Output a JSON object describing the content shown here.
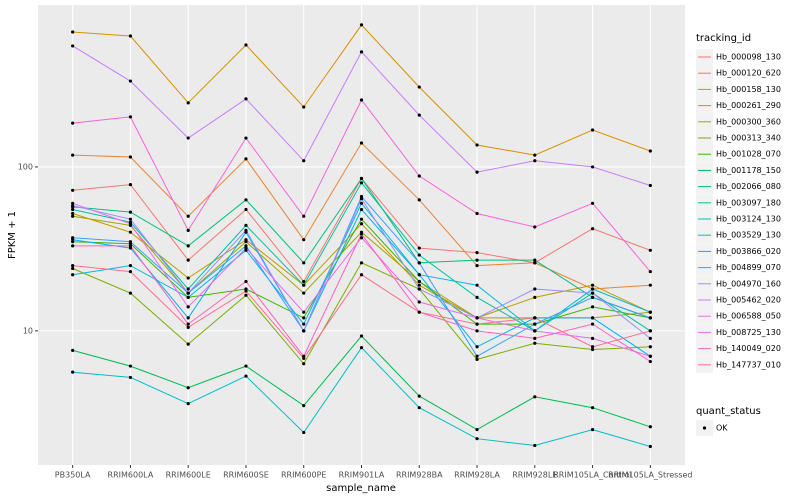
{
  "chart_data": {
    "type": "line",
    "x_label": "sample_name",
    "y_label": "FPKM + 1",
    "legend_title": "tracking_id",
    "legend2_title": "quant_status",
    "legend2_items": [
      "OK"
    ],
    "log_y": true,
    "grid": true,
    "legend_position": "right",
    "ylim": [
      1.52,
      972
    ],
    "yticks": [
      10,
      100
    ],
    "categories": [
      "PB350LA",
      "RRIM600LA",
      "RRIM600LE",
      "RRIM600SE",
      "RRIM600PE",
      "RRIM901LA",
      "RRIM928BA",
      "RRIM928LA",
      "RRIM928LE",
      "RRIM105LA_Control",
      "RRIM105LA_Stressed"
    ],
    "series": [
      {
        "name": "Hb_000098_130",
        "color": "#F8766D",
        "values": [
          72,
          78,
          27,
          55,
          20,
          85,
          32,
          30,
          26,
          42,
          31
        ]
      },
      {
        "name": "Hb_000120_620",
        "color": "#EA8331",
        "values": [
          118,
          115,
          50,
          112,
          36,
          140,
          63,
          25,
          26,
          18,
          19
        ]
      },
      {
        "name": "Hb_000158_130",
        "color": "#D89000",
        "values": [
          665,
          629,
          246,
          554,
          232,
          735,
          307,
          136,
          118,
          168,
          125
        ]
      },
      {
        "name": "Hb_000261_290",
        "color": "#C09B00",
        "values": [
          52,
          40,
          21,
          36,
          19,
          45,
          19,
          12,
          16,
          19,
          13
        ]
      },
      {
        "name": "Hb_000300_360",
        "color": "#A3A500",
        "values": [
          50,
          44,
          17,
          35,
          17,
          40,
          20,
          12,
          12,
          12,
          13
        ]
      },
      {
        "name": "Hb_000313_340",
        "color": "#7CAE00",
        "values": [
          24,
          17,
          8.3,
          16.5,
          6.3,
          26,
          18,
          6.7,
          8.4,
          7.7,
          8
        ]
      },
      {
        "name": "Hb_001028_070",
        "color": "#39B600",
        "values": [
          35,
          34,
          16,
          18,
          12,
          48,
          20,
          11,
          11,
          14,
          12
        ]
      },
      {
        "name": "Hb_001178_150",
        "color": "#00BB4E",
        "values": [
          7.6,
          6.1,
          4.5,
          6.1,
          3.5,
          9.3,
          4.0,
          2.5,
          3.96,
          3.4,
          2.6
        ]
      },
      {
        "name": "Hb_002066_080",
        "color": "#00BF7D",
        "values": [
          57,
          53,
          33,
          63,
          26,
          85,
          26,
          27,
          27,
          16,
          12
        ]
      },
      {
        "name": "Hb_003097_180",
        "color": "#00C1A3",
        "values": [
          55,
          46,
          18,
          44,
          19,
          80,
          29,
          16,
          10,
          17,
          10
        ]
      },
      {
        "name": "Hb_003124_130",
        "color": "#00BFC4",
        "values": [
          5.6,
          5.2,
          3.6,
          5.3,
          2.4,
          7.9,
          3.4,
          2.2,
          2.0,
          2.5,
          1.97
        ]
      },
      {
        "name": "Hb_003529_130",
        "color": "#00BAE0",
        "values": [
          22,
          25,
          16,
          31,
          11,
          60,
          22,
          19,
          10,
          18,
          13
        ]
      },
      {
        "name": "Hb_003866_020",
        "color": "#00B0F6",
        "values": [
          36,
          32,
          12,
          40,
          10,
          55,
          22,
          8,
          12,
          12,
          7
        ]
      },
      {
        "name": "Hb_004899_070",
        "color": "#35A2FF",
        "values": [
          37,
          35,
          17,
          33,
          10,
          66,
          26,
          7,
          11,
          16,
          12
        ]
      },
      {
        "name": "Hb_004970_160",
        "color": "#9590FF",
        "values": [
          58,
          48,
          17,
          41,
          10,
          64,
          18,
          12,
          18,
          17,
          9
        ]
      },
      {
        "name": "Hb_005462_020",
        "color": "#C77CFF",
        "values": [
          547,
          334,
          150,
          260,
          109,
          503,
          207,
          93,
          109,
          100,
          77
        ]
      },
      {
        "name": "Hb_006588_050",
        "color": "#E76BF3",
        "values": [
          60,
          45,
          14,
          32,
          13,
          37,
          15,
          12,
          10,
          9,
          7
        ]
      },
      {
        "name": "Hb_008725_130",
        "color": "#FA62DB",
        "values": [
          185,
          202,
          41,
          150,
          50,
          256,
          88,
          52,
          43,
          60,
          23
        ]
      },
      {
        "name": "Hb_140049_020",
        "color": "#FF62BC",
        "values": [
          33,
          33,
          11,
          20,
          7,
          39,
          13,
          10,
          9,
          11,
          6.5
        ]
      },
      {
        "name": "Hb_147737_010",
        "color": "#FF6C91",
        "values": [
          25,
          23,
          10.5,
          17.5,
          6.8,
          22,
          13,
          11,
          12,
          8,
          10
        ]
      }
    ]
  }
}
